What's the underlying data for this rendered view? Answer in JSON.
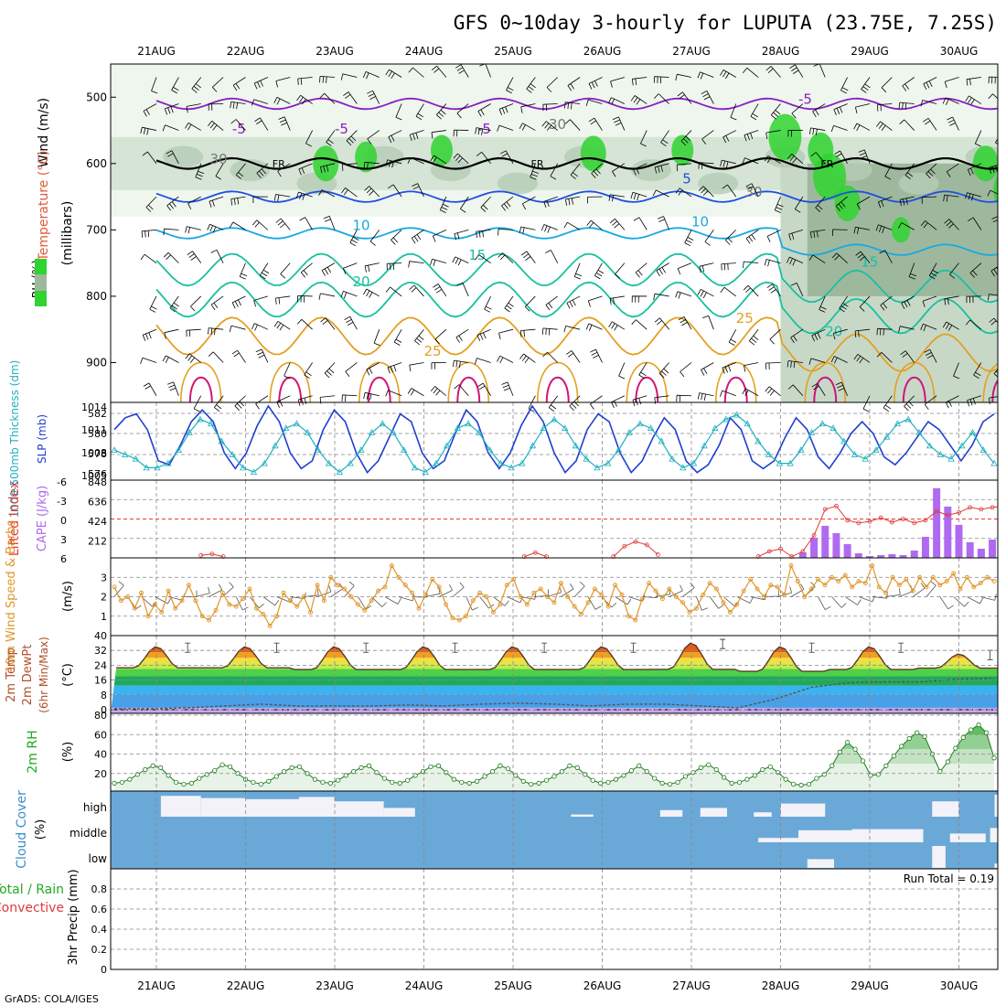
{
  "title": "GFS 0~10day 3-hourly for LUPUTA (23.75E, 7.25S)",
  "credit": "GrADS: COLA/IGES",
  "colors": {
    "rh_green": "#2fd42f",
    "temp_purple": "#8b1fc0",
    "temp_blue": "#1f4fe0",
    "temp_cyan": "#19a8e0",
    "temp_teal": "#19c0a0",
    "temp_orange": "#e3a020",
    "temp_magenta": "#d0157a",
    "slp_blue": "#1f3fd0",
    "thickness_cyan": "#20b0c0",
    "cape_purple": "#b06af0",
    "li_red": "#e03b3b",
    "wind_orange": "#e0962a",
    "cloud_blue": "#6aa8d8",
    "cloud_white": "#f2f2f8"
  },
  "chart_data": [
    {
      "panel": "cross-section",
      "type": "contour",
      "dates": [
        "21AUG",
        "22AUG",
        "23AUG",
        "24AUG",
        "25AUG",
        "26AUG",
        "27AUG",
        "28AUG",
        "29AUG",
        "30AUG"
      ],
      "ylabel_parts": [
        "Wind (m/s)",
        "Temperature (°C)",
        "RH (%)"
      ],
      "yaxis_name": "(millibars)",
      "ylim": [
        450,
        960
      ],
      "yticks": [
        500,
        600,
        700,
        800,
        900
      ],
      "freezing_label": "FR",
      "freezing_level_mb": 600,
      "contour_labels": [
        "-5",
        "-5",
        "-5",
        "-5",
        "5",
        "10",
        "10",
        "15",
        "15",
        "20",
        "20",
        "25",
        "25",
        "30",
        "30",
        "30",
        "50",
        "30"
      ],
      "isotherms": [
        {
          "label": "-5",
          "mean_mb": 510,
          "color": "temp_purple"
        },
        {
          "label": "0 (FR)",
          "mean_mb": 600,
          "color": "black"
        },
        {
          "label": "5",
          "mean_mb": 650,
          "color": "temp_blue"
        },
        {
          "label": "10",
          "mean_mb": 705,
          "color": "temp_cyan"
        },
        {
          "label": "15",
          "mean_mb": 760,
          "color": "temp_teal"
        },
        {
          "label": "20",
          "mean_mb": 805,
          "color": "temp_teal"
        },
        {
          "label": "25",
          "mean_mb": 860,
          "color": "temp_orange"
        }
      ]
    },
    {
      "panel": "slp-thickness",
      "type": "line",
      "ylabel_left": "1000-500mb Thickness (dm)",
      "ylabel_right": "SLP (mb)",
      "left_ticks": [
        "582",
        "580",
        "578",
        "576"
      ],
      "right_ticks": [
        "1014",
        "1011",
        "1008",
        "1005"
      ],
      "slp_range": [
        1005,
        1014
      ],
      "thickness_range": [
        575,
        583
      ],
      "slp_mb": [
        1011,
        1012.5,
        1013,
        1011,
        1007,
        1006.5,
        1009,
        1012,
        1013.5,
        1012,
        1008,
        1006,
        1008,
        1011.5,
        1014,
        1012,
        1008,
        1006,
        1007,
        1011,
        1013.5,
        1012,
        1008,
        1005.5,
        1007,
        1010,
        1013,
        1012,
        1008,
        1006,
        1007,
        1010.5,
        1013.5,
        1012,
        1008,
        1006,
        1008,
        1011.5,
        1014,
        1012,
        1008,
        1005.5,
        1007,
        1011,
        1013,
        1012,
        1008,
        1005.5,
        1007,
        1010,
        1012.5,
        1011,
        1007,
        1005.5,
        1006.5,
        1009,
        1012.5,
        1011,
        1007,
        1006,
        1007,
        1010,
        1012.5,
        1011,
        1007.5,
        1006,
        1008,
        1010.5,
        1012,
        1010.5,
        1007.5,
        1006.5,
        1008,
        1010,
        1012,
        1011,
        1009,
        1007,
        1009,
        1012,
        1013
      ],
      "thickness_dm": [
        578,
        577.5,
        577,
        576,
        576,
        576.5,
        578,
        580,
        581.5,
        581,
        579,
        577.5,
        576,
        575.5,
        576.5,
        578.5,
        580.5,
        581,
        580,
        578,
        576.5,
        575.5,
        576.5,
        578,
        580,
        581,
        580,
        578,
        576,
        575.5,
        576.5,
        578.5,
        580.5,
        581,
        580,
        578,
        576.5,
        576,
        576.5,
        578.5,
        580.5,
        581.5,
        580.5,
        578.5,
        577,
        576,
        576.5,
        578,
        580,
        581,
        580.5,
        579,
        577,
        576,
        576.5,
        578.5,
        580.5,
        581.5,
        582,
        581,
        579,
        577.5,
        576.5,
        576.5,
        578,
        580,
        581,
        580.5,
        579,
        577.5,
        577,
        578,
        579.5,
        581,
        581.5,
        580,
        578.5,
        577.5,
        577,
        578.5,
        580,
        578,
        576.5
      ]
    },
    {
      "panel": "cape-li",
      "type": "bar+line",
      "ylabel_left": "Lifted Index",
      "ylabel_right": "CAPE (J/kg)",
      "left_ticks": [
        "-6",
        "-3",
        "0",
        "3",
        "6"
      ],
      "right_ticks": [
        "848",
        "636",
        "424",
        "212"
      ],
      "cape_range": [
        0,
        848
      ],
      "li_range": [
        -6,
        6
      ],
      "cape_bars": [
        {
          "time_days": 7.25,
          "value": 60
        },
        {
          "time_days": 7.375,
          "value": 220
        },
        {
          "time_days": 7.5,
          "value": 350
        },
        {
          "time_days": 7.625,
          "value": 270
        },
        {
          "time_days": 7.75,
          "value": 150
        },
        {
          "time_days": 7.875,
          "value": 50
        },
        {
          "time_days": 8.0,
          "value": 20
        },
        {
          "time_days": 8.125,
          "value": 30
        },
        {
          "time_days": 8.25,
          "value": 40
        },
        {
          "time_days": 8.375,
          "value": 30
        },
        {
          "time_days": 8.5,
          "value": 80
        },
        {
          "time_days": 8.625,
          "value": 230
        },
        {
          "time_days": 8.75,
          "value": 760
        },
        {
          "time_days": 8.875,
          "value": 560
        },
        {
          "time_days": 9.0,
          "value": 360
        },
        {
          "time_days": 9.125,
          "value": 170
        },
        {
          "time_days": 9.25,
          "value": 100
        },
        {
          "time_days": 9.375,
          "value": 200
        },
        {
          "time_days": 9.5,
          "value": 240
        },
        {
          "time_days": 9.625,
          "value": 330
        },
        {
          "time_days": 9.75,
          "value": 220
        },
        {
          "time_days": 9.875,
          "value": 320
        }
      ],
      "li_series": [
        [
          0.5,
          5.6
        ],
        [
          0.625,
          5.4
        ],
        [
          0.75,
          5.8
        ],
        [
          4.125,
          5.8
        ],
        [
          4.25,
          5.2
        ],
        [
          4.375,
          5.8
        ],
        [
          5.125,
          5.8
        ],
        [
          5.25,
          4.2
        ],
        [
          5.375,
          3.5
        ],
        [
          5.5,
          4.0
        ],
        [
          5.625,
          5.5
        ],
        [
          6.75,
          5.8
        ],
        [
          6.875,
          5.0
        ],
        [
          7.0,
          4.6
        ],
        [
          7.125,
          5.8
        ],
        [
          7.25,
          5.0
        ],
        [
          7.375,
          2.5
        ],
        [
          7.5,
          -1.5
        ],
        [
          7.625,
          -2.0
        ],
        [
          7.75,
          0.2
        ],
        [
          7.875,
          0.6
        ],
        [
          8.0,
          0.4
        ],
        [
          8.125,
          -0.2
        ],
        [
          8.25,
          0.5
        ],
        [
          8.375,
          0.0
        ],
        [
          8.5,
          0.6
        ],
        [
          8.625,
          0.2
        ],
        [
          8.75,
          -1.2
        ],
        [
          8.875,
          -0.6
        ],
        [
          9.0,
          -1.0
        ],
        [
          9.125,
          -1.8
        ],
        [
          9.25,
          -1.5
        ],
        [
          9.375,
          -1.8
        ],
        [
          9.5,
          -2.0
        ],
        [
          9.625,
          -2.2
        ],
        [
          9.75,
          -2.4
        ],
        [
          9.875,
          -2.1
        ],
        [
          10.0,
          -2.4
        ],
        [
          10.125,
          -2.2
        ],
        [
          10.25,
          -2.5
        ]
      ]
    },
    {
      "panel": "10m-wind",
      "type": "line+barbs",
      "ylabel": "10m Wind Speed & Barbs",
      "yunit": "(m/s)",
      "yticks": [
        "3",
        "2",
        "1"
      ],
      "ylim": [
        0,
        4
      ],
      "speed": [
        2.5,
        1.8,
        2.0,
        1.4,
        2.2,
        1.0,
        1.6,
        1.2,
        2.3,
        1.4,
        1.8,
        2.6,
        1.8,
        1.0,
        0.8,
        1.3,
        2.2,
        1.6,
        1.5,
        1.9,
        2.4,
        1.4,
        1.1,
        0.5,
        1.0,
        2.2,
        1.8,
        1.5,
        2.0,
        1.2,
        2.6,
        1.8,
        3.0,
        2.6,
        2.4,
        2.0,
        1.6,
        1.3,
        1.8,
        2.3,
        2.5,
        3.6,
        3.0,
        2.6,
        2.2,
        1.4,
        2.1,
        2.9,
        2.5,
        1.6,
        0.9,
        0.8,
        1.0,
        1.8,
        2.2,
        2.0,
        1.2,
        1.6,
        2.6,
        2.9,
        2.0,
        1.6,
        2.2,
        2.4,
        2.0,
        1.7,
        2.7,
        2.0,
        1.5,
        1.1,
        1.7,
        2.4,
        2.1,
        1.5,
        2.6,
        2.1,
        1.0,
        0.8,
        1.9,
        2.7,
        2.3,
        1.9,
        2.4,
        2.0,
        1.7,
        1.2,
        1.4,
        2.1,
        2.7,
        2.4,
        1.7,
        1.2,
        1.6,
        2.3,
        2.9,
        2.4,
        2.0,
        2.6,
        2.5,
        2.1,
        3.6,
        2.8,
        2.0,
        2.4,
        2.9,
        2.6,
        3.0,
        2.8,
        3.1,
        2.5,
        2.8,
        2.7,
        3.6,
        2.5,
        2.2,
        3.0,
        2.6,
        2.9,
        2.3,
        3.0,
        2.5,
        3.0,
        2.6,
        2.8,
        3.2,
        2.4,
        3.0,
        2.5,
        2.7,
        3.0,
        2.8
      ]
    },
    {
      "panel": "2m-temp",
      "type": "area+line",
      "ylabel_parts": [
        "2m Temp",
        "2m DewPt",
        "(6hr Min/Max)"
      ],
      "yunit": "(°C)",
      "yticks": [
        "40",
        "32",
        "24",
        "16",
        "8",
        "0"
      ],
      "ylim": [
        -2,
        40
      ],
      "day_max_c": [
        34,
        34,
        34,
        34,
        34,
        34,
        36,
        34,
        34,
        30
      ],
      "night_min_c": [
        22,
        22,
        21,
        21,
        21,
        21,
        21,
        20,
        21,
        22
      ],
      "dewpoint_c": [
        0.5,
        0.5,
        1,
        2,
        3,
        2,
        2,
        2,
        2.5,
        2,
        3,
        3.5,
        3,
        2,
        3,
        3,
        2,
        1,
        5.5,
        12,
        14.5,
        15,
        15,
        16.5,
        17
      ]
    },
    {
      "panel": "2m-rh",
      "type": "area+line",
      "ylabel": "2m RH",
      "yunit": "(%)",
      "yticks": [
        "80",
        "60",
        "40",
        "20"
      ],
      "ylim": [
        0,
        80
      ],
      "rh": [
        10,
        11,
        14,
        19,
        24,
        28,
        26,
        18,
        11,
        9,
        10,
        15,
        19,
        23,
        29,
        27,
        20,
        14,
        11,
        9,
        12,
        17,
        22,
        26,
        27,
        20,
        14,
        11,
        10,
        13,
        18,
        22,
        26,
        28,
        21,
        15,
        11,
        10,
        13,
        18,
        22,
        27,
        28,
        21,
        14,
        11,
        10,
        12,
        17,
        22,
        28,
        25,
        18,
        12,
        9,
        10,
        13,
        17,
        22,
        28,
        26,
        19,
        13,
        10,
        11,
        14,
        18,
        23,
        28,
        22,
        15,
        10,
        9,
        11,
        17,
        21,
        26,
        29,
        24,
        16,
        10,
        11,
        14,
        18,
        24,
        27,
        21,
        14,
        9,
        8,
        9,
        15,
        19,
        28,
        42,
        52,
        45,
        33,
        18,
        19,
        28,
        38,
        48,
        56,
        62,
        58,
        40,
        22,
        32,
        46,
        57,
        65,
        70,
        62,
        36
      ]
    },
    {
      "panel": "cloud-cover",
      "type": "heatmap",
      "ylabel": "Cloud Cover",
      "yunit": "(%)",
      "levels": [
        "high",
        "middle",
        "low"
      ],
      "clear_blocks": [
        {
          "level": "high",
          "start_days": 0.05,
          "end_days": 0.5,
          "value": 95
        },
        {
          "level": "high",
          "start_days": 0.5,
          "end_days": 1.0,
          "value": 85
        },
        {
          "level": "high",
          "start_days": 1.0,
          "end_days": 1.6,
          "value": 80
        },
        {
          "level": "high",
          "start_days": 1.6,
          "end_days": 2.0,
          "value": 90
        },
        {
          "level": "high",
          "start_days": 2.0,
          "end_days": 2.55,
          "value": 70
        },
        {
          "level": "high",
          "start_days": 2.55,
          "end_days": 2.9,
          "value": 40
        },
        {
          "level": "high",
          "start_days": 4.65,
          "end_days": 4.9,
          "value": 10
        },
        {
          "level": "high",
          "start_days": 5.65,
          "end_days": 5.9,
          "value": 30
        },
        {
          "level": "high",
          "start_days": 6.1,
          "end_days": 6.4,
          "value": 40
        },
        {
          "level": "high",
          "start_days": 6.7,
          "end_days": 6.9,
          "value": 20
        },
        {
          "level": "high",
          "start_days": 7.0,
          "end_days": 7.5,
          "value": 60
        },
        {
          "level": "high",
          "start_days": 8.7,
          "end_days": 9.0,
          "value": 70
        },
        {
          "level": "high",
          "start_days": 9.4,
          "end_days": 9.75,
          "value": 100
        },
        {
          "level": "middle",
          "start_days": 6.75,
          "end_days": 7.4,
          "value": 20
        },
        {
          "level": "middle",
          "start_days": 7.2,
          "end_days": 7.8,
          "value": 55
        },
        {
          "level": "middle",
          "start_days": 7.8,
          "end_days": 8.6,
          "value": 60
        },
        {
          "level": "middle",
          "start_days": 8.9,
          "end_days": 9.3,
          "value": 40
        },
        {
          "level": "middle",
          "start_days": 9.35,
          "end_days": 10.0,
          "value": 65
        },
        {
          "level": "low",
          "start_days": 7.3,
          "end_days": 7.6,
          "value": 40
        },
        {
          "level": "low",
          "start_days": 8.7,
          "end_days": 8.85,
          "value": 100
        },
        {
          "level": "low",
          "start_days": 9.4,
          "end_days": 9.75,
          "value": 20
        }
      ]
    },
    {
      "panel": "precip",
      "type": "bar",
      "ylabel_parts": [
        "Total / Rain",
        "Convective"
      ],
      "yunit": "3hr Precip (mm)",
      "yticks": [
        "0.8",
        "0.6",
        "0.4",
        "0.2",
        "0"
      ],
      "ylim": [
        0,
        1.0
      ],
      "run_total_label": "Run Total = 0.19",
      "total_bars": [
        {
          "time_days": 9.5,
          "value": 0.05
        },
        {
          "time_days": 9.75,
          "value": 0.14
        }
      ],
      "convective_bars": [
        {
          "time_days": 9.5,
          "value": 0.05
        },
        {
          "time_days": 9.75,
          "value": 0.13
        }
      ]
    }
  ]
}
